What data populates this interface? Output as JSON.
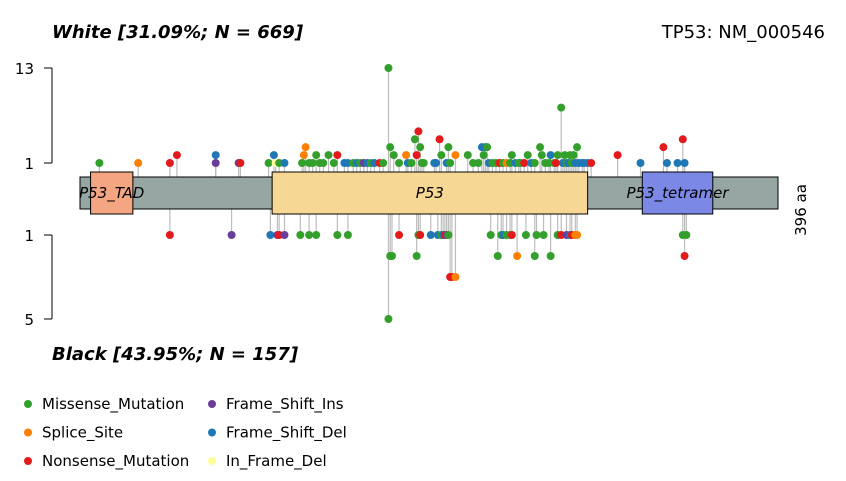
{
  "chart_data": {
    "type": "lollipop",
    "title_top": "White [31.09%; N = 669]",
    "title_bottom": "Black [43.95%; N = 157]",
    "gene_label": "TP53: NM_000546",
    "length_label": "396 aa",
    "protein_length": 396,
    "top_axis": {
      "max_label": "13",
      "min_label": "1",
      "max": 13
    },
    "bottom_axis": {
      "max_label": "5",
      "min_label": "1",
      "max": 5
    },
    "domains": [
      {
        "name": "P53_TAD",
        "start": 6,
        "end": 30,
        "color": "#F4A582"
      },
      {
        "name": "P53",
        "start": 109,
        "end": 288,
        "color": "#F7D794"
      },
      {
        "name": "P53_tetramer",
        "start": 319,
        "end": 359,
        "color": "#7B88E6"
      }
    ],
    "backbone_color": "#96A6A2",
    "legend": [
      {
        "label": "Missense_Mutation",
        "color": "#33A02C"
      },
      {
        "label": "Splice_Site",
        "color": "#FF7F00"
      },
      {
        "label": "Nonsense_Mutation",
        "color": "#E31A1C"
      },
      {
        "label": "Frame_Shift_Ins",
        "color": "#6A3D9A"
      },
      {
        "label": "Frame_Shift_Del",
        "color": "#1F78B4"
      },
      {
        "label": "In_Frame_Del",
        "color": "#FFFF99"
      }
    ],
    "top_mutations": [
      {
        "pos": 11,
        "count": 1,
        "type": "Missense_Mutation"
      },
      {
        "pos": 33,
        "count": 1,
        "type": "Splice_Site"
      },
      {
        "pos": 51,
        "count": 1,
        "type": "Nonsense_Mutation"
      },
      {
        "pos": 55,
        "count": 2,
        "type": "Nonsense_Mutation"
      },
      {
        "pos": 77,
        "count": 1,
        "type": "Frame_Shift_Ins"
      },
      {
        "pos": 77,
        "count": 2,
        "type": "Frame_Shift_Del"
      },
      {
        "pos": 90,
        "count": 1,
        "type": "Frame_Shift_Ins"
      },
      {
        "pos": 91,
        "count": 1,
        "type": "Nonsense_Mutation"
      },
      {
        "pos": 107,
        "count": 1,
        "type": "Missense_Mutation"
      },
      {
        "pos": 110,
        "count": 2,
        "type": "Frame_Shift_Del"
      },
      {
        "pos": 111,
        "count": 1,
        "type": "In_Frame_Del"
      },
      {
        "pos": 113,
        "count": 1,
        "type": "Missense_Mutation"
      },
      {
        "pos": 116,
        "count": 1,
        "type": "Frame_Shift_Del"
      },
      {
        "pos": 126,
        "count": 1,
        "type": "Missense_Mutation"
      },
      {
        "pos": 127,
        "count": 2,
        "type": "Splice_Site"
      },
      {
        "pos": 128,
        "count": 3,
        "type": "Splice_Site"
      },
      {
        "pos": 130,
        "count": 1,
        "type": "Missense_Mutation"
      },
      {
        "pos": 132,
        "count": 1,
        "type": "Missense_Mutation"
      },
      {
        "pos": 134,
        "count": 2,
        "type": "Missense_Mutation"
      },
      {
        "pos": 136,
        "count": 1,
        "type": "Missense_Mutation"
      },
      {
        "pos": 138,
        "count": 1,
        "type": "Missense_Mutation"
      },
      {
        "pos": 141,
        "count": 2,
        "type": "Missense_Mutation"
      },
      {
        "pos": 144,
        "count": 1,
        "type": "Missense_Mutation"
      },
      {
        "pos": 146,
        "count": 2,
        "type": "Nonsense_Mutation"
      },
      {
        "pos": 150,
        "count": 1,
        "type": "Frame_Shift_Del"
      },
      {
        "pos": 152,
        "count": 1,
        "type": "Frame_Shift_Del"
      },
      {
        "pos": 155,
        "count": 1,
        "type": "Missense_Mutation"
      },
      {
        "pos": 157,
        "count": 1,
        "type": "Frame_Shift_Del"
      },
      {
        "pos": 159,
        "count": 1,
        "type": "Missense_Mutation"
      },
      {
        "pos": 161,
        "count": 1,
        "type": "Frame_Shift_Ins"
      },
      {
        "pos": 163,
        "count": 1,
        "type": "Frame_Shift_Del"
      },
      {
        "pos": 165,
        "count": 1,
        "type": "Missense_Mutation"
      },
      {
        "pos": 167,
        "count": 1,
        "type": "Frame_Shift_Del"
      },
      {
        "pos": 170,
        "count": 1,
        "type": "Nonsense_Mutation"
      },
      {
        "pos": 172,
        "count": 1,
        "type": "Missense_Mutation"
      },
      {
        "pos": 175,
        "count": 13,
        "type": "Missense_Mutation"
      },
      {
        "pos": 176,
        "count": 3,
        "type": "Missense_Mutation"
      },
      {
        "pos": 178,
        "count": 2,
        "type": "Missense_Mutation"
      },
      {
        "pos": 181,
        "count": 1,
        "type": "Missense_Mutation"
      },
      {
        "pos": 185,
        "count": 2,
        "type": "Splice_Site"
      },
      {
        "pos": 186,
        "count": 1,
        "type": "Frame_Shift_Del"
      },
      {
        "pos": 188,
        "count": 1,
        "type": "Missense_Mutation"
      },
      {
        "pos": 190,
        "count": 4,
        "type": "Missense_Mutation"
      },
      {
        "pos": 191,
        "count": 2,
        "type": "Nonsense_Mutation"
      },
      {
        "pos": 192,
        "count": 5,
        "type": "Nonsense_Mutation"
      },
      {
        "pos": 193,
        "count": 3,
        "type": "Missense_Mutation"
      },
      {
        "pos": 194,
        "count": 1,
        "type": "Missense_Mutation"
      },
      {
        "pos": 195,
        "count": 1,
        "type": "Missense_Mutation"
      },
      {
        "pos": 201,
        "count": 1,
        "type": "Frame_Shift_Del"
      },
      {
        "pos": 202,
        "count": 1,
        "type": "Frame_Shift_Del"
      },
      {
        "pos": 204,
        "count": 4,
        "type": "Nonsense_Mutation"
      },
      {
        "pos": 205,
        "count": 2,
        "type": "Missense_Mutation"
      },
      {
        "pos": 208,
        "count": 1,
        "type": "Frame_Shift_Del"
      },
      {
        "pos": 209,
        "count": 3,
        "type": "Missense_Mutation"
      },
      {
        "pos": 210,
        "count": 1,
        "type": "Missense_Mutation"
      },
      {
        "pos": 213,
        "count": 2,
        "type": "Splice_Site"
      },
      {
        "pos": 220,
        "count": 2,
        "type": "Missense_Mutation"
      },
      {
        "pos": 223,
        "count": 1,
        "type": "Missense_Mutation"
      },
      {
        "pos": 226,
        "count": 1,
        "type": "Missense_Mutation"
      },
      {
        "pos": 228,
        "count": 3,
        "type": "Frame_Shift_Del"
      },
      {
        "pos": 229,
        "count": 2,
        "type": "Missense_Mutation"
      },
      {
        "pos": 230,
        "count": 3,
        "type": "Frame_Shift_Del"
      },
      {
        "pos": 231,
        "count": 3,
        "type": "Missense_Mutation"
      },
      {
        "pos": 232,
        "count": 1,
        "type": "Frame_Shift_Del"
      },
      {
        "pos": 234,
        "count": 1,
        "type": "Missense_Mutation"
      },
      {
        "pos": 236,
        "count": 1,
        "type": "Missense_Mutation"
      },
      {
        "pos": 238,
        "count": 1,
        "type": "Nonsense_Mutation"
      },
      {
        "pos": 240,
        "count": 1,
        "type": "Missense_Mutation"
      },
      {
        "pos": 242,
        "count": 1,
        "type": "Splice_Site"
      },
      {
        "pos": 244,
        "count": 1,
        "type": "Missense_Mutation"
      },
      {
        "pos": 245,
        "count": 2,
        "type": "Missense_Mutation"
      },
      {
        "pos": 247,
        "count": 1,
        "type": "Frame_Shift_Del"
      },
      {
        "pos": 249,
        "count": 1,
        "type": "Missense_Mutation"
      },
      {
        "pos": 250,
        "count": 1,
        "type": "Missense_Mutation"
      },
      {
        "pos": 252,
        "count": 1,
        "type": "Nonsense_Mutation"
      },
      {
        "pos": 254,
        "count": 2,
        "type": "Missense_Mutation"
      },
      {
        "pos": 256,
        "count": 1,
        "type": "Frame_Shift_Del"
      },
      {
        "pos": 258,
        "count": 1,
        "type": "Missense_Mutation"
      },
      {
        "pos": 261,
        "count": 3,
        "type": "Missense_Mutation"
      },
      {
        "pos": 262,
        "count": 2,
        "type": "Missense_Mutation"
      },
      {
        "pos": 264,
        "count": 1,
        "type": "Missense_Mutation"
      },
      {
        "pos": 266,
        "count": 1,
        "type": "Missense_Mutation"
      },
      {
        "pos": 267,
        "count": 2,
        "type": "Frame_Shift_Del"
      },
      {
        "pos": 269,
        "count": 1,
        "type": "Missense_Mutation"
      },
      {
        "pos": 270,
        "count": 1,
        "type": "Nonsense_Mutation"
      },
      {
        "pos": 271,
        "count": 2,
        "type": "Missense_Mutation"
      },
      {
        "pos": 273,
        "count": 8,
        "type": "Missense_Mutation"
      },
      {
        "pos": 274,
        "count": 1,
        "type": "Frame_Shift_Del"
      },
      {
        "pos": 275,
        "count": 2,
        "type": "Missense_Mutation"
      },
      {
        "pos": 276,
        "count": 1,
        "type": "Missense_Mutation"
      },
      {
        "pos": 277,
        "count": 1,
        "type": "Frame_Shift_Del"
      },
      {
        "pos": 278,
        "count": 2,
        "type": "Missense_Mutation"
      },
      {
        "pos": 279,
        "count": 1,
        "type": "Missense_Mutation"
      },
      {
        "pos": 280,
        "count": 2,
        "type": "Missense_Mutation"
      },
      {
        "pos": 281,
        "count": 1,
        "type": "Frame_Shift_Del"
      },
      {
        "pos": 282,
        "count": 3,
        "type": "Missense_Mutation"
      },
      {
        "pos": 283,
        "count": 1,
        "type": "Frame_Shift_Del"
      },
      {
        "pos": 285,
        "count": 1,
        "type": "Frame_Shift_Del"
      },
      {
        "pos": 286,
        "count": 1,
        "type": "Frame_Shift_Del"
      },
      {
        "pos": 288,
        "count": 1,
        "type": "Frame_Shift_Del"
      },
      {
        "pos": 290,
        "count": 1,
        "type": "Nonsense_Mutation"
      },
      {
        "pos": 305,
        "count": 2,
        "type": "Nonsense_Mutation"
      },
      {
        "pos": 318,
        "count": 1,
        "type": "Frame_Shift_Del"
      },
      {
        "pos": 331,
        "count": 3,
        "type": "Nonsense_Mutation"
      },
      {
        "pos": 333,
        "count": 1,
        "type": "Frame_Shift_Del"
      },
      {
        "pos": 339,
        "count": 1,
        "type": "Frame_Shift_Del"
      },
      {
        "pos": 342,
        "count": 4,
        "type": "Nonsense_Mutation"
      },
      {
        "pos": 343,
        "count": 1,
        "type": "Frame_Shift_Del"
      }
    ],
    "bottom_mutations": [
      {
        "pos": 51,
        "count": 1,
        "type": "Nonsense_Mutation"
      },
      {
        "pos": 86,
        "count": 1,
        "type": "Frame_Shift_Ins"
      },
      {
        "pos": 108,
        "count": 1,
        "type": "Frame_Shift_Del"
      },
      {
        "pos": 112,
        "count": 1,
        "type": "Frame_Shift_Ins"
      },
      {
        "pos": 113,
        "count": 1,
        "type": "Nonsense_Mutation"
      },
      {
        "pos": 116,
        "count": 1,
        "type": "Frame_Shift_Ins"
      },
      {
        "pos": 125,
        "count": 1,
        "type": "Missense_Mutation"
      },
      {
        "pos": 130,
        "count": 1,
        "type": "Missense_Mutation"
      },
      {
        "pos": 134,
        "count": 1,
        "type": "Missense_Mutation"
      },
      {
        "pos": 146,
        "count": 1,
        "type": "Missense_Mutation"
      },
      {
        "pos": 152,
        "count": 1,
        "type": "Missense_Mutation"
      },
      {
        "pos": 175,
        "count": 5,
        "type": "Missense_Mutation"
      },
      {
        "pos": 176,
        "count": 2,
        "type": "Missense_Mutation"
      },
      {
        "pos": 177,
        "count": 2,
        "type": "Missense_Mutation"
      },
      {
        "pos": 181,
        "count": 1,
        "type": "Nonsense_Mutation"
      },
      {
        "pos": 191,
        "count": 2,
        "type": "Missense_Mutation"
      },
      {
        "pos": 192,
        "count": 1,
        "type": "Missense_Mutation"
      },
      {
        "pos": 193,
        "count": 1,
        "type": "Nonsense_Mutation"
      },
      {
        "pos": 199,
        "count": 1,
        "type": "Frame_Shift_Del"
      },
      {
        "pos": 203,
        "count": 1,
        "type": "Frame_Shift_Del"
      },
      {
        "pos": 205,
        "count": 1,
        "type": "Missense_Mutation"
      },
      {
        "pos": 206,
        "count": 1,
        "type": "Frame_Shift_Del"
      },
      {
        "pos": 207,
        "count": 1,
        "type": "Nonsense_Mutation"
      },
      {
        "pos": 208,
        "count": 1,
        "type": "Frame_Shift_Ins"
      },
      {
        "pos": 209,
        "count": 1,
        "type": "Missense_Mutation"
      },
      {
        "pos": 210,
        "count": 3,
        "type": "Nonsense_Mutation"
      },
      {
        "pos": 211,
        "count": 3,
        "type": "Nonsense_Mutation"
      },
      {
        "pos": 213,
        "count": 3,
        "type": "Splice_Site"
      },
      {
        "pos": 233,
        "count": 1,
        "type": "Missense_Mutation"
      },
      {
        "pos": 237,
        "count": 2,
        "type": "Missense_Mutation"
      },
      {
        "pos": 239,
        "count": 1,
        "type": "Missense_Mutation"
      },
      {
        "pos": 240,
        "count": 1,
        "type": "Frame_Shift_Del"
      },
      {
        "pos": 242,
        "count": 1,
        "type": "Missense_Mutation"
      },
      {
        "pos": 244,
        "count": 1,
        "type": "Missense_Mutation"
      },
      {
        "pos": 245,
        "count": 1,
        "type": "Nonsense_Mutation"
      },
      {
        "pos": 248,
        "count": 2,
        "type": "Splice_Site"
      },
      {
        "pos": 253,
        "count": 1,
        "type": "Missense_Mutation"
      },
      {
        "pos": 258,
        "count": 2,
        "type": "Missense_Mutation"
      },
      {
        "pos": 259,
        "count": 1,
        "type": "Missense_Mutation"
      },
      {
        "pos": 263,
        "count": 1,
        "type": "Missense_Mutation"
      },
      {
        "pos": 267,
        "count": 2,
        "type": "Missense_Mutation"
      },
      {
        "pos": 271,
        "count": 1,
        "type": "Missense_Mutation"
      },
      {
        "pos": 273,
        "count": 1,
        "type": "Nonsense_Mutation"
      },
      {
        "pos": 276,
        "count": 1,
        "type": "Frame_Shift_Ins"
      },
      {
        "pos": 278,
        "count": 1,
        "type": "Frame_Shift_Del"
      },
      {
        "pos": 279,
        "count": 1,
        "type": "Nonsense_Mutation"
      },
      {
        "pos": 281,
        "count": 1,
        "type": "Splice_Site"
      },
      {
        "pos": 282,
        "count": 1,
        "type": "Splice_Site"
      },
      {
        "pos": 342,
        "count": 1,
        "type": "Missense_Mutation"
      },
      {
        "pos": 343,
        "count": 2,
        "type": "Nonsense_Mutation"
      },
      {
        "pos": 344,
        "count": 1,
        "type": "Missense_Mutation"
      }
    ]
  }
}
